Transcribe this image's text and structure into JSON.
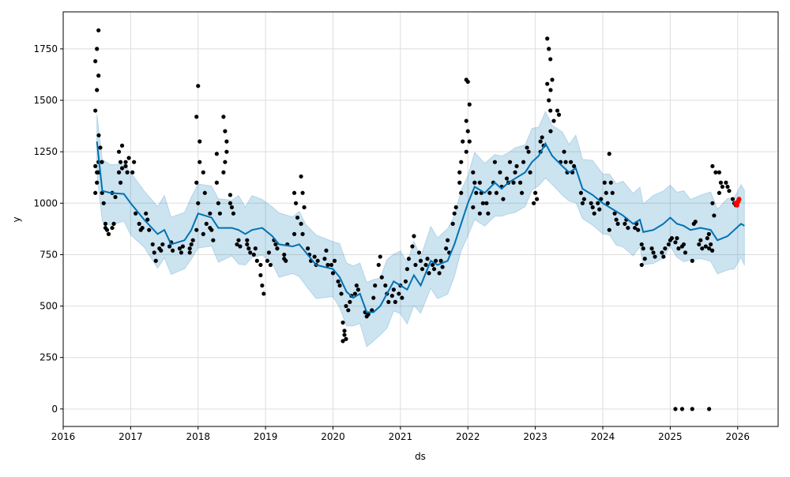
{
  "chart_data": {
    "type": "line",
    "title": "",
    "xlabel": "ds",
    "ylabel": "y",
    "xlim": [
      2016.0,
      2026.6
    ],
    "ylim": [
      -85,
      1930
    ],
    "grid": true,
    "x_ticks": [
      "2016",
      "2017",
      "2018",
      "2019",
      "2020",
      "2021",
      "2022",
      "2023",
      "2024",
      "2025",
      "2026"
    ],
    "y_ticks": [
      "0",
      "250",
      "500",
      "750",
      "1000",
      "1250",
      "1500",
      "1750"
    ],
    "colors": {
      "forecast": "#0072B2",
      "interval": "#0072B2",
      "observed": "#000000",
      "future": "#ff0000",
      "grid": "#dddddd"
    },
    "interval_halfwidth": 150,
    "yhat": [
      [
        2016.5,
        1300
      ],
      [
        2016.58,
        1060
      ],
      [
        2016.7,
        1050
      ],
      [
        2016.9,
        1045
      ],
      [
        2017.0,
        1000
      ],
      [
        2017.2,
        920
      ],
      [
        2017.4,
        850
      ],
      [
        2017.5,
        870
      ],
      [
        2017.6,
        800
      ],
      [
        2017.8,
        820
      ],
      [
        2017.9,
        870
      ],
      [
        2018.0,
        950
      ],
      [
        2018.2,
        930
      ],
      [
        2018.3,
        880
      ],
      [
        2018.5,
        880
      ],
      [
        2018.6,
        870
      ],
      [
        2018.7,
        850
      ],
      [
        2018.8,
        870
      ],
      [
        2018.95,
        880
      ],
      [
        2019.1,
        840
      ],
      [
        2019.2,
        800
      ],
      [
        2019.4,
        790
      ],
      [
        2019.5,
        800
      ],
      [
        2019.6,
        760
      ],
      [
        2019.75,
        700
      ],
      [
        2020.0,
        680
      ],
      [
        2020.1,
        640
      ],
      [
        2020.2,
        570
      ],
      [
        2020.3,
        540
      ],
      [
        2020.4,
        560
      ],
      [
        2020.5,
        470
      ],
      [
        2020.6,
        470
      ],
      [
        2020.7,
        500
      ],
      [
        2020.8,
        560
      ],
      [
        2020.9,
        620
      ],
      [
        2021.0,
        600
      ],
      [
        2021.1,
        580
      ],
      [
        2021.2,
        650
      ],
      [
        2021.3,
        600
      ],
      [
        2021.45,
        720
      ],
      [
        2021.55,
        700
      ],
      [
        2021.7,
        720
      ],
      [
        2021.8,
        800
      ],
      [
        2021.9,
        900
      ],
      [
        2022.0,
        1000
      ],
      [
        2022.1,
        1080
      ],
      [
        2022.25,
        1050
      ],
      [
        2022.4,
        1100
      ],
      [
        2022.5,
        1070
      ],
      [
        2022.6,
        1100
      ],
      [
        2022.7,
        1120
      ],
      [
        2022.85,
        1150
      ],
      [
        2022.95,
        1200
      ],
      [
        2023.05,
        1230
      ],
      [
        2023.15,
        1290
      ],
      [
        2023.25,
        1230
      ],
      [
        2023.4,
        1180
      ],
      [
        2023.5,
        1150
      ],
      [
        2023.6,
        1170
      ],
      [
        2023.7,
        1070
      ],
      [
        2023.85,
        1040
      ],
      [
        2024.0,
        1000
      ],
      [
        2024.1,
        980
      ],
      [
        2024.2,
        960
      ],
      [
        2024.3,
        940
      ],
      [
        2024.45,
        900
      ],
      [
        2024.55,
        920
      ],
      [
        2024.6,
        860
      ],
      [
        2024.75,
        870
      ],
      [
        2024.9,
        900
      ],
      [
        2025.0,
        930
      ],
      [
        2025.1,
        900
      ],
      [
        2025.2,
        890
      ],
      [
        2025.3,
        870
      ],
      [
        2025.45,
        880
      ],
      [
        2025.6,
        870
      ],
      [
        2025.7,
        820
      ],
      [
        2025.85,
        840
      ],
      [
        2025.95,
        870
      ],
      [
        2026.05,
        900
      ],
      [
        2026.1,
        890
      ]
    ],
    "observed": [
      {
        "x": 2016.5,
        "y": [
          1050,
          1100,
          1200,
          1450,
          1550,
          1620,
          1690,
          1750,
          1840,
          1180,
          1150
        ]
      },
      {
        "x": 2016.55,
        "y": [
          1330,
          1270,
          1200,
          1150
        ]
      },
      {
        "x": 2016.6,
        "y": [
          1050,
          1000
        ]
      },
      {
        "x": 2016.65,
        "y": [
          900,
          870,
          850,
          880
        ]
      },
      {
        "x": 2016.75,
        "y": [
          880,
          900,
          1030,
          1050
        ]
      },
      {
        "x": 2016.85,
        "y": [
          1150,
          1200,
          1280,
          1250,
          1100,
          1170
        ]
      },
      {
        "x": 2016.95,
        "y": [
          1180,
          1150,
          1220,
          1200
        ]
      },
      {
        "x": 2017.05,
        "y": [
          1150,
          1200,
          950
        ]
      },
      {
        "x": 2017.15,
        "y": [
          900,
          870,
          880
        ]
      },
      {
        "x": 2017.25,
        "y": [
          950,
          920,
          870
        ]
      },
      {
        "x": 2017.35,
        "y": [
          800,
          760,
          720
        ]
      },
      {
        "x": 2017.45,
        "y": [
          780,
          770,
          800
        ]
      },
      {
        "x": 2017.6,
        "y": [
          790,
          810,
          770
        ]
      },
      {
        "x": 2017.75,
        "y": [
          780,
          760,
          790
        ]
      },
      {
        "x": 2017.9,
        "y": [
          780,
          800,
          820,
          760
        ]
      },
      {
        "x": 2018.0,
        "y": [
          870,
          1000,
          1200,
          1420,
          1570,
          1300,
          1100
        ]
      },
      {
        "x": 2018.1,
        "y": [
          1150,
          1050,
          900,
          850
        ]
      },
      {
        "x": 2018.2,
        "y": [
          950,
          870,
          820,
          880
        ]
      },
      {
        "x": 2018.3,
        "y": [
          1100,
          1000,
          950,
          1240
        ]
      },
      {
        "x": 2018.4,
        "y": [
          1150,
          1200,
          1300,
          1420,
          1350,
          1250
        ]
      },
      {
        "x": 2018.5,
        "y": [
          1000,
          980,
          950,
          1040
        ]
      },
      {
        "x": 2018.6,
        "y": [
          800,
          820,
          790
        ]
      },
      {
        "x": 2018.75,
        "y": [
          800,
          780,
          760,
          820
        ]
      },
      {
        "x": 2018.85,
        "y": [
          750,
          780,
          720
        ]
      },
      {
        "x": 2018.95,
        "y": [
          650,
          600,
          560,
          700
        ]
      },
      {
        "x": 2019.05,
        "y": [
          720,
          760,
          700
        ]
      },
      {
        "x": 2019.15,
        "y": [
          820,
          800,
          780
        ]
      },
      {
        "x": 2019.3,
        "y": [
          750,
          720,
          800,
          730
        ]
      },
      {
        "x": 2019.45,
        "y": [
          1050,
          1000,
          930,
          850
        ]
      },
      {
        "x": 2019.55,
        "y": [
          1130,
          1050,
          980,
          900,
          850
        ]
      },
      {
        "x": 2019.65,
        "y": [
          780,
          750,
          720
        ]
      },
      {
        "x": 2019.75,
        "y": [
          740,
          700,
          720
        ]
      },
      {
        "x": 2019.9,
        "y": [
          730,
          770,
          700
        ]
      },
      {
        "x": 2020.0,
        "y": [
          700,
          660,
          720
        ]
      },
      {
        "x": 2020.1,
        "y": [
          620,
          600,
          560
        ]
      },
      {
        "x": 2020.17,
        "y": [
          420,
          380,
          340,
          330,
          360,
          500
        ]
      },
      {
        "x": 2020.25,
        "y": [
          480,
          520,
          550
        ]
      },
      {
        "x": 2020.35,
        "y": [
          560,
          600,
          580
        ]
      },
      {
        "x": 2020.5,
        "y": [
          470,
          450,
          460
        ]
      },
      {
        "x": 2020.6,
        "y": [
          480,
          540,
          600
        ]
      },
      {
        "x": 2020.7,
        "y": [
          700,
          740,
          640
        ]
      },
      {
        "x": 2020.8,
        "y": [
          600,
          560,
          520
        ]
      },
      {
        "x": 2020.9,
        "y": [
          550,
          580,
          520
        ]
      },
      {
        "x": 2021.0,
        "y": [
          560,
          600,
          540
        ]
      },
      {
        "x": 2021.1,
        "y": [
          620,
          680,
          730
        ]
      },
      {
        "x": 2021.2,
        "y": [
          790,
          840,
          700
        ]
      },
      {
        "x": 2021.3,
        "y": [
          760,
          720,
          680
        ]
      },
      {
        "x": 2021.4,
        "y": [
          700,
          730,
          660
        ]
      },
      {
        "x": 2021.5,
        "y": [
          700,
          680,
          720
        ]
      },
      {
        "x": 2021.6,
        "y": [
          660,
          720,
          690
        ]
      },
      {
        "x": 2021.7,
        "y": [
          780,
          820,
          760
        ]
      },
      {
        "x": 2021.8,
        "y": [
          900,
          950,
          980
        ]
      },
      {
        "x": 2021.9,
        "y": [
          1100,
          1200,
          1300,
          1150,
          1050
        ]
      },
      {
        "x": 2022.0,
        "y": [
          1600,
          1590,
          1480,
          1400,
          1350,
          1300,
          1250
        ]
      },
      {
        "x": 2022.1,
        "y": [
          1150,
          1100,
          1050,
          980
        ]
      },
      {
        "x": 2022.2,
        "y": [
          1100,
          1050,
          1000,
          950
        ]
      },
      {
        "x": 2022.3,
        "y": [
          1000,
          950,
          1050
        ]
      },
      {
        "x": 2022.4,
        "y": [
          1100,
          1200,
          1050
        ]
      },
      {
        "x": 2022.5,
        "y": [
          1150,
          1080,
          1020
        ]
      },
      {
        "x": 2022.6,
        "y": [
          1120,
          1100,
          1200
        ]
      },
      {
        "x": 2022.7,
        "y": [
          1100,
          1150,
          1180
        ]
      },
      {
        "x": 2022.8,
        "y": [
          1100,
          1050,
          1200
        ]
      },
      {
        "x": 2022.9,
        "y": [
          1270,
          1250,
          1150
        ]
      },
      {
        "x": 2023.0,
        "y": [
          1000,
          1050,
          1020
        ]
      },
      {
        "x": 2023.1,
        "y": [
          1300,
          1320,
          1280,
          1250
        ]
      },
      {
        "x": 2023.2,
        "y": [
          1800,
          1750,
          1700,
          1580,
          1500,
          1450
        ]
      },
      {
        "x": 2023.25,
        "y": [
          1550,
          1600,
          1400,
          1350
        ]
      },
      {
        "x": 2023.35,
        "y": [
          1450,
          1430,
          1200
        ]
      },
      {
        "x": 2023.45,
        "y": [
          1250,
          1200,
          1150
        ]
      },
      {
        "x": 2023.55,
        "y": [
          1200,
          1150,
          1180
        ]
      },
      {
        "x": 2023.7,
        "y": [
          1050,
          1000,
          1020
        ]
      },
      {
        "x": 2023.85,
        "y": [
          1000,
          980,
          950
        ]
      },
      {
        "x": 2023.95,
        "y": [
          1000,
          970,
          1020
        ]
      },
      {
        "x": 2024.05,
        "y": [
          1100,
          1050,
          1000
        ]
      },
      {
        "x": 2024.12,
        "y": [
          1240,
          1100,
          1050,
          870
        ]
      },
      {
        "x": 2024.2,
        "y": [
          950,
          920,
          900
        ]
      },
      {
        "x": 2024.35,
        "y": [
          900,
          920,
          880
        ]
      },
      {
        "x": 2024.5,
        "y": [
          880,
          900,
          870
        ]
      },
      {
        "x": 2024.6,
        "y": [
          800,
          780,
          730,
          700
        ]
      },
      {
        "x": 2024.75,
        "y": [
          780,
          760,
          740
        ]
      },
      {
        "x": 2024.9,
        "y": [
          760,
          740,
          780
        ]
      },
      {
        "x": 2025.0,
        "y": [
          800,
          820,
          830
        ]
      },
      {
        "x": 2025.1,
        "y": [
          810,
          830,
          780,
          0
        ]
      },
      {
        "x": 2025.2,
        "y": [
          790,
          800,
          760,
          0
        ]
      },
      {
        "x": 2025.35,
        "y": [
          720,
          900,
          910,
          0
        ]
      },
      {
        "x": 2025.45,
        "y": [
          800,
          820,
          780
        ]
      },
      {
        "x": 2025.55,
        "y": [
          790,
          830,
          850
        ]
      },
      {
        "x": 2025.6,
        "y": [
          780,
          800,
          770,
          0
        ]
      },
      {
        "x": 2025.65,
        "y": [
          1000,
          940,
          1150,
          1180
        ]
      },
      {
        "x": 2025.75,
        "y": [
          1150,
          1100,
          1080,
          1050
        ]
      },
      {
        "x": 2025.85,
        "y": [
          1100,
          1080,
          1060
        ]
      },
      {
        "x": 2025.95,
        "y": [
          1020,
          1000,
          990
        ]
      }
    ],
    "future_points": [
      [
        2025.97,
        1000
      ],
      [
        2025.99,
        990
      ],
      [
        2026.0,
        1005
      ],
      [
        2026.01,
        1010
      ],
      [
        2026.02,
        1020
      ]
    ]
  }
}
